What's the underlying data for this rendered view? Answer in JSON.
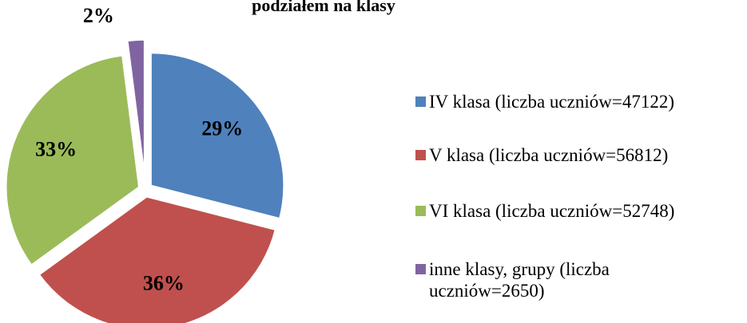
{
  "chart_data": {
    "type": "pie",
    "title": "podziałem na klasy",
    "categories": [
      "IV klasa (liczba uczniów=47122)",
      "V klasa (liczba uczniów=56812)",
      "VI klasa (liczba uczniów=52748)",
      "inne klasy, grupy (liczba uczniów=2650)"
    ],
    "values": [
      29,
      36,
      33,
      2
    ],
    "value_labels": [
      "29%",
      "36%",
      "33%",
      "2%"
    ],
    "colors": [
      "#4f81bd",
      "#c0504d",
      "#9bbb59",
      "#8064a2"
    ],
    "legend": "right"
  }
}
